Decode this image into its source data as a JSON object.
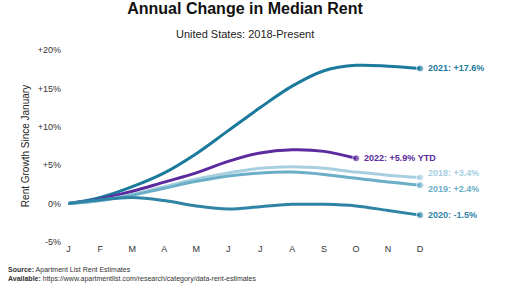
{
  "chart_data": {
    "type": "line",
    "title": "Annual Change in Median Rent",
    "subtitle": "United States: 2018-Present",
    "y_label": "Rent Growth Since January",
    "footnotes": [
      "Source: Apartment List Rent Estimates",
      "Available: https://www.apartmentlist.com/research/category/data-rent-estimates"
    ],
    "categories": [
      "J",
      "F",
      "M",
      "A",
      "M",
      "J",
      "J",
      "A",
      "S",
      "O",
      "N",
      "D"
    ],
    "series": [
      {
        "name": "2021",
        "color": "#1b7a9c",
        "label": "2021: +17.6%",
        "values": [
          0,
          0.8,
          2.2,
          4.0,
          6.5,
          9.5,
          12.5,
          15.3,
          17.3,
          18.0,
          17.9,
          17.6
        ]
      },
      {
        "name": "2022",
        "color": "#5a2a9e",
        "label": "2022: +5.9% YTD",
        "values": [
          0,
          0.6,
          1.6,
          2.8,
          4.0,
          5.5,
          6.6,
          7.0,
          6.8,
          5.9,
          null,
          null
        ]
      },
      {
        "name": "2018",
        "color": "#a8cfe0",
        "label": "2018: +3.4%",
        "values": [
          0,
          0.4,
          1.2,
          2.2,
          3.2,
          4.0,
          4.6,
          4.8,
          4.6,
          4.1,
          3.7,
          3.4
        ]
      },
      {
        "name": "2019",
        "color": "#6aaec8",
        "label": "2019: +2.4%",
        "values": [
          0,
          0.4,
          1.1,
          2.0,
          2.9,
          3.6,
          4.0,
          4.1,
          3.8,
          3.3,
          2.8,
          2.4
        ]
      },
      {
        "name": "2020",
        "color": "#2f84a6",
        "label": "2020: -1.5%",
        "values": [
          0,
          0.5,
          0.8,
          0.4,
          -0.3,
          -0.7,
          -0.4,
          -0.1,
          -0.1,
          -0.3,
          -0.9,
          -1.5
        ]
      }
    ],
    "ylim": [
      -5,
      20
    ],
    "yticks": [
      {
        "value": -5,
        "label": "-5%"
      },
      {
        "value": 0,
        "label": "0%"
      },
      {
        "value": 5,
        "label": "+5%"
      },
      {
        "value": 10,
        "label": "+10%"
      },
      {
        "value": 15,
        "label": "+15%"
      },
      {
        "value": 20,
        "label": "+20%"
      }
    ],
    "grid": false
  }
}
